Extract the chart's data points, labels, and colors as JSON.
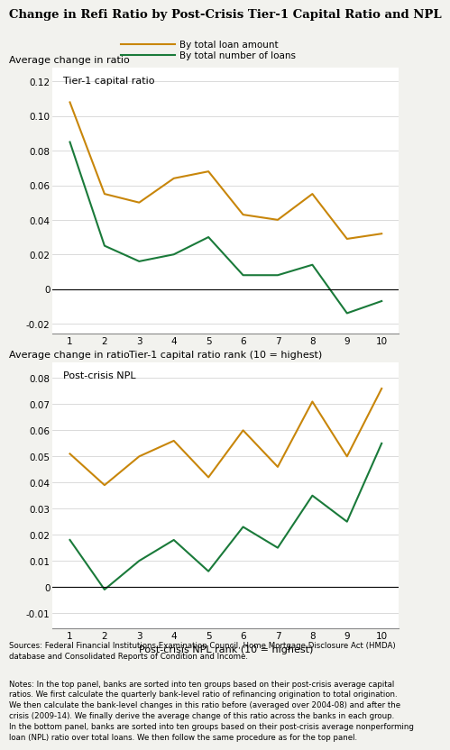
{
  "title": "Change in Refi Ratio by Post-Crisis Tier-1 Capital Ratio and NPL",
  "legend_labels": [
    "By total loan amount",
    "By total number of loans"
  ],
  "color_orange": "#C8860A",
  "color_green": "#1a7a3a",
  "panel1_label": "Tier-1 capital ratio",
  "panel1_ylabel": "Average change in ratio",
  "panel1_xlabel": "Tier-1 capital ratio rank (10 = highest)",
  "panel1_ylim": [
    -0.026,
    0.128
  ],
  "panel1_yticks": [
    -0.02,
    0,
    0.02,
    0.04,
    0.06,
    0.08,
    0.1,
    0.12
  ],
  "panel1_orange": [
    0.108,
    0.055,
    0.05,
    0.064,
    0.068,
    0.043,
    0.04,
    0.055,
    0.029,
    0.032
  ],
  "panel1_green": [
    0.085,
    0.025,
    0.016,
    0.02,
    0.03,
    0.008,
    0.008,
    0.014,
    -0.014,
    -0.007
  ],
  "panel2_label": "Post-crisis NPL",
  "panel2_ylabel": "Average change in ratio",
  "panel2_xlabel": "Post-crisis NPL rank (10 = highest)",
  "panel2_ylim": [
    -0.016,
    0.086
  ],
  "panel2_yticks": [
    -0.01,
    0,
    0.01,
    0.02,
    0.03,
    0.04,
    0.05,
    0.06,
    0.07,
    0.08
  ],
  "panel2_orange": [
    0.051,
    0.039,
    0.05,
    0.056,
    0.042,
    0.06,
    0.046,
    0.071,
    0.05,
    0.076
  ],
  "panel2_green": [
    0.018,
    -0.001,
    0.01,
    0.018,
    0.006,
    0.023,
    0.015,
    0.035,
    0.025,
    0.055
  ],
  "sources_text": "Sources: Federal Financial Institutions Examination Council, Home Mortgage Disclosure Act (HMDA)\ndatabase and Consolidated Reports of Condition and Income.",
  "notes_text": "Notes: In the top panel, banks are sorted into ten groups based on their post-crisis average capital\nratios. We first calculate the quarterly bank-level ratio of refinancing origination to total origination.\nWe then calculate the bank-level changes in this ratio before (averaged over 2004-08) and after the\ncrisis (2009-14). We finally derive the average change of this ratio across the banks in each group.\nIn the bottom panel, banks are sorted into ten groups based on their post-crisis average nonperforming\nloan (NPL) ratio over total loans. We then follow the same procedure as for the top panel.",
  "bg_color": "#f2f2ee",
  "plot_bg_color": "#ffffff",
  "linewidth": 1.5
}
